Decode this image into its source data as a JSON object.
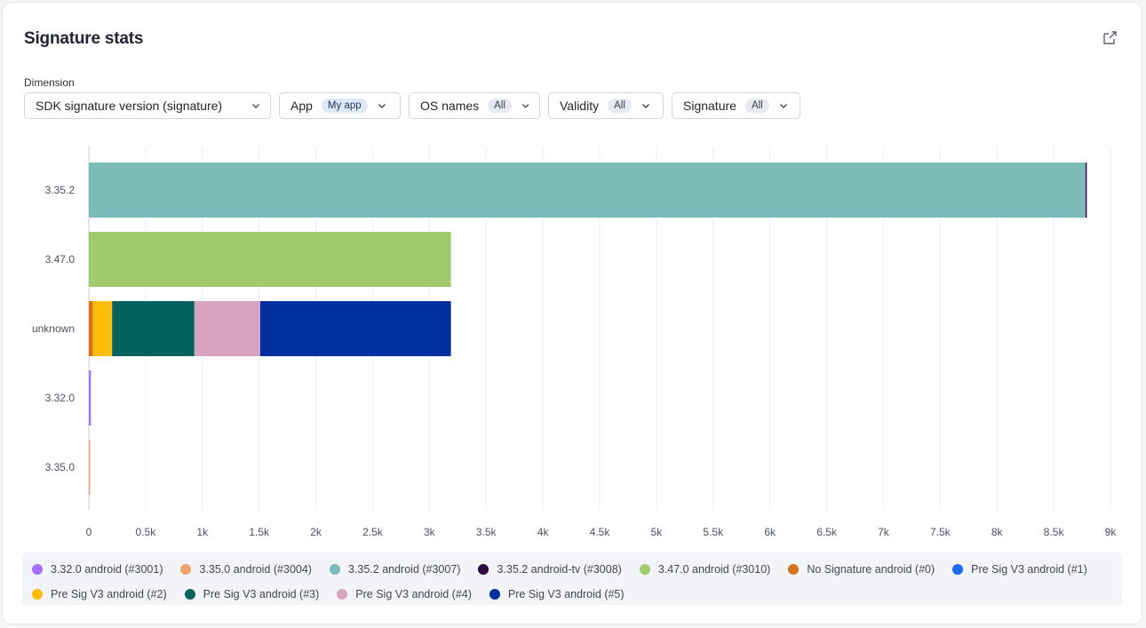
{
  "header": {
    "title": "Signature stats"
  },
  "filters": {
    "dimension_label": "Dimension",
    "dimension_value": "SDK signature version (signature)",
    "items": [
      {
        "label": "App",
        "value": "My app"
      },
      {
        "label": "OS names",
        "value": "All"
      },
      {
        "label": "Validity",
        "value": "All"
      },
      {
        "label": "Signature",
        "value": "All"
      }
    ]
  },
  "icons": {
    "export": "export-icon",
    "chevron": "chevron-down-icon"
  },
  "chart_data": {
    "type": "bar",
    "orientation": "horizontal",
    "stacked": true,
    "categories": [
      "3.35.2",
      "3.47.0",
      "unknown",
      "3.32.0",
      "3.35.0"
    ],
    "xlim": [
      0,
      9000
    ],
    "x_ticks": [
      "0",
      "0.5k",
      "1k",
      "1.5k",
      "2k",
      "2.5k",
      "3k",
      "3.5k",
      "4k",
      "4.5k",
      "5k",
      "5.5k",
      "6k",
      "6.5k",
      "7k",
      "7.5k",
      "8k",
      "8.5k",
      "9k"
    ],
    "grid": "vertical",
    "series": [
      {
        "name": "3.32.0 android (#3001)",
        "color": "#a56eff",
        "values": [
          0,
          0,
          0,
          18,
          0
        ]
      },
      {
        "name": "3.35.0 android (#3004)",
        "color": "#f2a36e",
        "values": [
          0,
          0,
          0,
          0,
          6
        ]
      },
      {
        "name": "3.35.2 android (#3007)",
        "color": "#7bbbb8",
        "values": [
          8780,
          0,
          0,
          0,
          0
        ]
      },
      {
        "name": "3.35.2 android-tv (#3008)",
        "color": "#2d0a3d",
        "values": [
          10,
          0,
          0,
          0,
          0
        ]
      },
      {
        "name": "3.47.0 android (#3010)",
        "color": "#a1c96d",
        "values": [
          0,
          3190,
          0,
          0,
          0
        ]
      },
      {
        "name": "No Signature android (#0)",
        "color": "#d6711c",
        "values": [
          0,
          0,
          35,
          0,
          0
        ]
      },
      {
        "name": "Pre Sig V3 android (#1)",
        "color": "#1f6bf0",
        "values": [
          0,
          0,
          0,
          0,
          0
        ]
      },
      {
        "name": "Pre Sig V3 android (#2)",
        "color": "#fdbd0d",
        "values": [
          0,
          0,
          170,
          0,
          0
        ]
      },
      {
        "name": "Pre Sig V3 android (#3)",
        "color": "#03635c",
        "values": [
          0,
          0,
          725,
          0,
          0
        ]
      },
      {
        "name": "Pre Sig V3 android (#4)",
        "color": "#d7a4c2",
        "values": [
          0,
          0,
          580,
          0,
          0
        ]
      },
      {
        "name": "Pre Sig V3 android (#5)",
        "color": "#002f9e",
        "values": [
          0,
          0,
          1680,
          0,
          0
        ]
      }
    ]
  }
}
